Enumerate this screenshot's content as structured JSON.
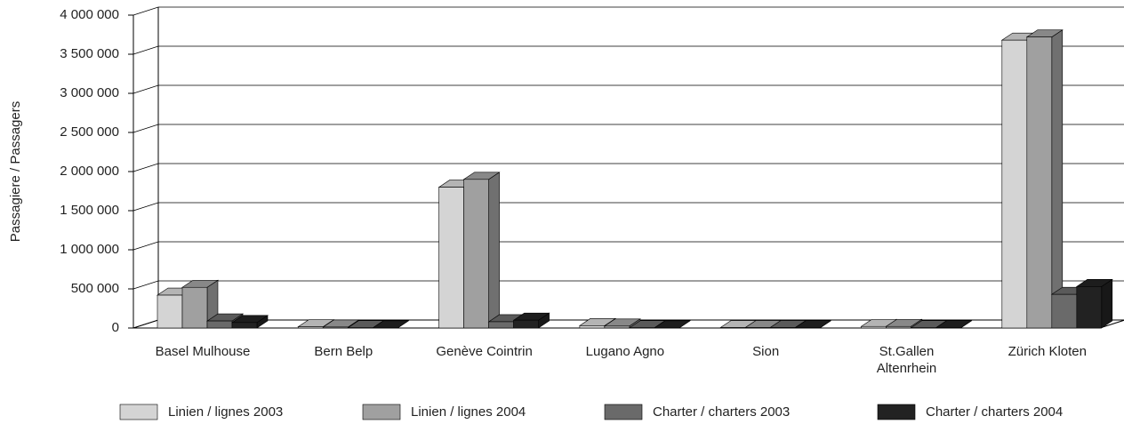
{
  "chart_data": {
    "type": "bar3d",
    "y_label": "Passagiere / Passagers",
    "categories": [
      "Basel Mulhouse",
      "Bern Belp",
      "Genève Cointrin",
      "Lugano Agno",
      "Sion",
      "St.Gallen\nAltenrhein",
      "Zürich Kloten"
    ],
    "series": [
      {
        "name": "Linien / lignes 2003",
        "color": "#d4d4d4",
        "values": [
          420000,
          15000,
          1800000,
          30000,
          5000,
          20000,
          3680000
        ]
      },
      {
        "name": "Linien / lignes 2004",
        "color": "#a0a0a0",
        "values": [
          520000,
          12000,
          1900000,
          25000,
          5000,
          20000,
          3720000
        ]
      },
      {
        "name": "Charter / charters 2003",
        "color": "#6a6a6a",
        "values": [
          90000,
          3000,
          80000,
          3000,
          5000,
          3000,
          430000
        ]
      },
      {
        "name": "Charter / charters 2004",
        "color": "#222222",
        "values": [
          70000,
          2000,
          100000,
          2000,
          3000,
          3000,
          530000
        ]
      }
    ],
    "ylim": [
      0,
      4000000
    ],
    "yticks": [
      0,
      {
        "value": 500000,
        "label": "500 000"
      },
      {
        "value": 1000000,
        "label": "1 000 000"
      },
      {
        "value": 1500000,
        "label": "1 500 000"
      },
      {
        "value": 2000000,
        "label": "2 000 000"
      },
      {
        "value": 2500000,
        "label": "2 500 000"
      },
      {
        "value": 3000000,
        "label": "3 000 000"
      },
      {
        "value": 3500000,
        "label": "3 500 000"
      },
      {
        "value": 4000000,
        "label": "4 000 000"
      }
    ],
    "grid": true,
    "legend": "bottom"
  }
}
